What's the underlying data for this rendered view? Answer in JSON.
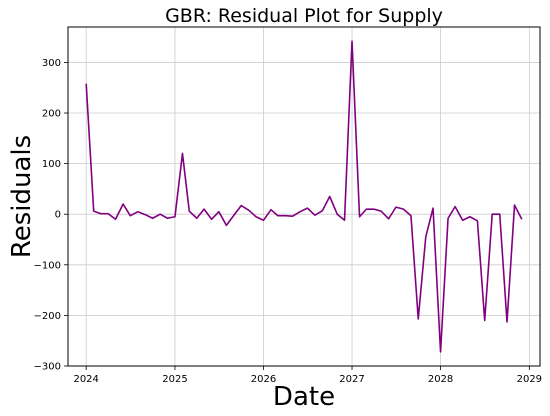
{
  "chart_data": {
    "type": "line",
    "title": "GBR: Residual Plot for Supply",
    "xlabel": "Date",
    "ylabel": "Residuals",
    "xlim": [
      "2023-10-18",
      "2029-02-14"
    ],
    "ylim": [
      -300,
      370
    ],
    "x_ticks": [
      "2024",
      "2025",
      "2026",
      "2027",
      "2028",
      "2029"
    ],
    "y_ticks": [
      -300,
      -200,
      -100,
      0,
      100,
      200,
      300
    ],
    "grid": true,
    "legend": "none",
    "series": [
      {
        "color": "#800080",
        "x": [
          "2024-01",
          "2024-02",
          "2024-03",
          "2024-04",
          "2024-05",
          "2024-06",
          "2024-07",
          "2024-08",
          "2024-09",
          "2024-10",
          "2024-11",
          "2024-12",
          "2025-01",
          "2025-02",
          "2025-03",
          "2025-04",
          "2025-05",
          "2025-06",
          "2025-07",
          "2025-08",
          "2025-09",
          "2025-10",
          "2025-11",
          "2025-12",
          "2026-01",
          "2026-02",
          "2026-03",
          "2026-04",
          "2026-05",
          "2026-06",
          "2026-07",
          "2026-08",
          "2026-09",
          "2026-10",
          "2026-11",
          "2026-12",
          "2027-01",
          "2027-02",
          "2027-03",
          "2027-04",
          "2027-05",
          "2027-06",
          "2027-07",
          "2027-08",
          "2027-09",
          "2027-10",
          "2027-11",
          "2027-12",
          "2028-01",
          "2028-02",
          "2028-03",
          "2028-04",
          "2028-05",
          "2028-06",
          "2028-07",
          "2028-08",
          "2028-09",
          "2028-10",
          "2028-11",
          "2028-12"
        ],
        "y": [
          258,
          6,
          1,
          1,
          -10,
          20,
          -3,
          5,
          -1,
          -8,
          0,
          -8,
          -5,
          120,
          6,
          -8,
          10,
          -10,
          5,
          -22,
          -2,
          17,
          8,
          -5,
          -12,
          9,
          -3,
          -3,
          -4,
          5,
          12,
          -2,
          7,
          35,
          0,
          -12,
          342,
          -5,
          10,
          10,
          6,
          -9,
          14,
          10,
          -3,
          -207,
          -45,
          12,
          -272,
          -8,
          15,
          -12,
          -5,
          -13,
          -210,
          0,
          0,
          -213,
          18,
          -10
        ]
      }
    ]
  }
}
